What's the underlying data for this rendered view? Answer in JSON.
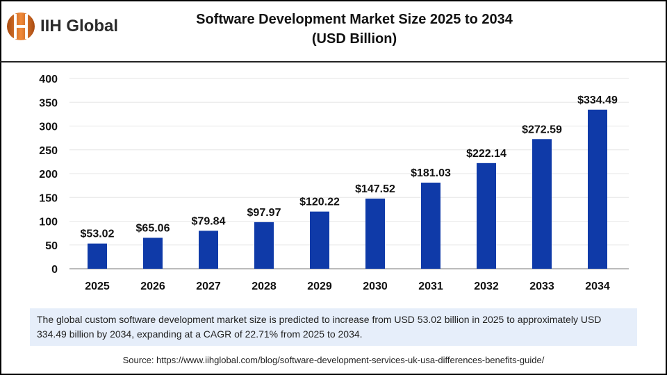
{
  "brand": {
    "name": "IIH Global",
    "logo_colors": [
      "#d2691e",
      "#888888"
    ]
  },
  "note": "The global custom software development market size is predicted to increase from USD 53.02 billion in 2025 to approximately USD 334.49 billion by 2034, expanding at a CAGR of 22.71% from 2025 to 2034.",
  "source": "Source: https://www.iihglobal.com/blog/software-development-services-uk-usa-differences-benefits-guide/",
  "chart_data": {
    "type": "bar",
    "title": "Software Development Market Size 2025 to 2034",
    "subtitle": "(USD Billion)",
    "categories": [
      "2025",
      "2026",
      "2027",
      "2028",
      "2029",
      "2030",
      "2031",
      "2032",
      "2033",
      "2034"
    ],
    "values": [
      53.02,
      65.06,
      79.84,
      97.97,
      120.22,
      147.52,
      181.03,
      222.14,
      272.59,
      334.49
    ],
    "data_labels": [
      "$53.02",
      "$65.06",
      "$79.84",
      "$97.97",
      "$120.22",
      "$147.52",
      "$181.03",
      "$222.14",
      "$272.59",
      "$334.49"
    ],
    "xlabel": "",
    "ylabel": "",
    "ylim": [
      0,
      400
    ],
    "yticks": [
      "0",
      "50",
      "100",
      "150",
      "200",
      "250",
      "300",
      "350",
      "400"
    ],
    "grid": true,
    "bar_color": "#0f3aa8"
  }
}
